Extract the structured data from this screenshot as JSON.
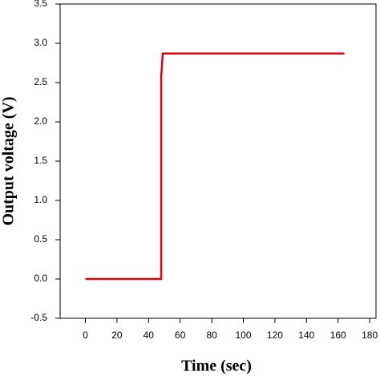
{
  "chart_data": {
    "type": "line",
    "x_label": "Time (sec)",
    "y_label": "Output voltage (V)",
    "x": [
      0,
      48,
      48,
      49,
      164
    ],
    "series": [
      {
        "color": "#e0000f",
        "values": [
          0,
          0,
          2.58,
          2.87,
          2.87
        ]
      }
    ],
    "xlim": [
      -16,
      184
    ],
    "xticks": [
      0,
      20,
      40,
      60,
      80,
      100,
      120,
      140,
      160,
      180
    ],
    "ylim": [
      -0.5,
      3.5
    ],
    "yticks": [
      -0.5,
      {
        "value": 0,
        "label": "0.0"
      },
      0.5,
      {
        "value": 1,
        "label": "1.0"
      },
      1.5,
      {
        "value": 2,
        "label": "2.0"
      },
      2.5,
      {
        "value": 3,
        "label": "3.0"
      },
      3.5
    ]
  }
}
